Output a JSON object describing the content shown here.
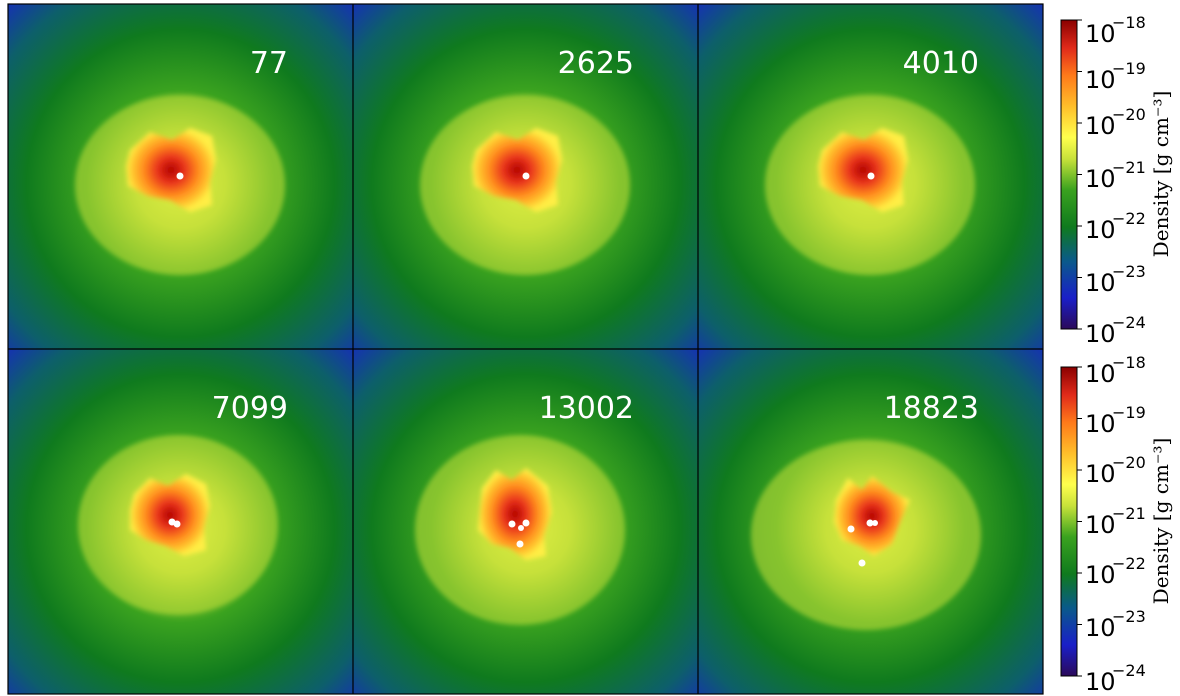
{
  "chart_data": {
    "type": "heatmap",
    "quantity": "Density",
    "unit": "[g cm⁻³]",
    "colorbar_label": "Density [g cm⁻³]",
    "color_scale": "log",
    "color_range": [
      1e-24,
      1e-18
    ],
    "colormap": [
      "#2b0a5a",
      "#1a1fc8",
      "#0a5a8a",
      "#0f7a1e",
      "#3aa21f",
      "#c7e13a",
      "#ffff4d",
      "#ffbf2a",
      "#ff7a1a",
      "#e02a1a",
      "#8a0000"
    ],
    "colorbar_ticks": [
      {
        "base": "10",
        "exp": "−18",
        "value": 1e-18
      },
      {
        "base": "10",
        "exp": "−19",
        "value": 1e-19
      },
      {
        "base": "10",
        "exp": "−20",
        "value": 1e-20
      },
      {
        "base": "10",
        "exp": "−21",
        "value": 1e-21
      },
      {
        "base": "10",
        "exp": "−22",
        "value": 1e-22
      },
      {
        "base": "10",
        "exp": "−23",
        "value": 1e-23
      },
      {
        "base": "10",
        "exp": "−24",
        "value": 1e-24
      }
    ],
    "panels": [
      {
        "label": "77",
        "sinks": 1
      },
      {
        "label": "2625",
        "sinks": 1
      },
      {
        "label": "4010",
        "sinks": 1
      },
      {
        "label": "7099",
        "sinks": 2
      },
      {
        "label": "13002",
        "sinks": 4
      },
      {
        "label": "18823",
        "sinks": 4
      }
    ]
  }
}
